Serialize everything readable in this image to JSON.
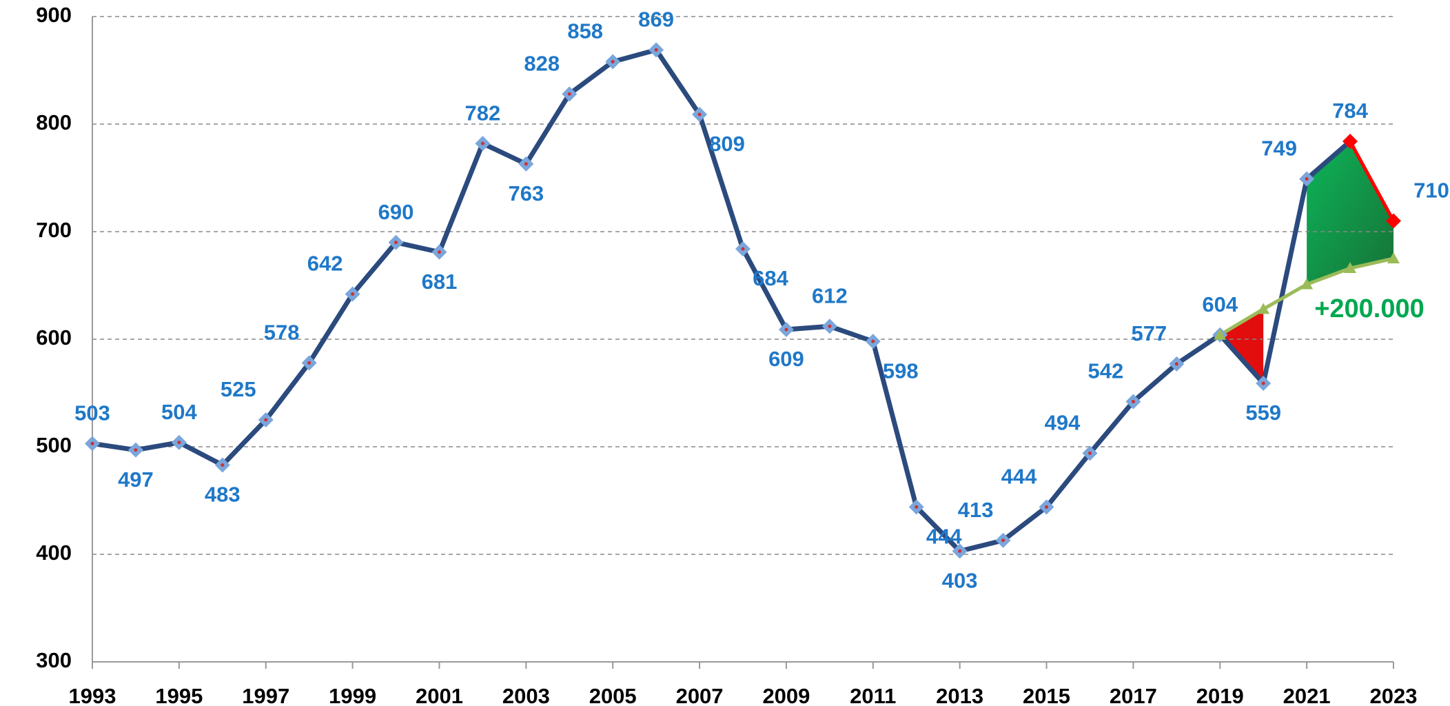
{
  "chart_data": {
    "type": "line",
    "x": [
      1993,
      1994,
      1995,
      1996,
      1997,
      1998,
      1999,
      2000,
      2001,
      2002,
      2003,
      2004,
      2005,
      2006,
      2007,
      2008,
      2009,
      2010,
      2011,
      2012,
      2013,
      2014,
      2015,
      2016,
      2017,
      2018,
      2019,
      2020,
      2021,
      2022,
      2023
    ],
    "series": [
      {
        "color": "#2b4a7e",
        "marker_color": "#7aa6dc",
        "values": [
          503,
          497,
          504,
          483,
          525,
          578,
          642,
          690,
          681,
          782,
          763,
          828,
          858,
          869,
          809,
          684,
          609,
          612,
          598,
          444,
          403,
          413,
          444,
          494,
          542,
          577,
          604,
          559,
          749,
          784,
          null
        ],
        "labeled": true
      },
      {
        "color": "#ff0000",
        "marker_color": "#ff0000",
        "values": [
          null,
          null,
          null,
          null,
          null,
          null,
          null,
          null,
          null,
          null,
          null,
          null,
          null,
          null,
          null,
          null,
          null,
          null,
          null,
          null,
          null,
          null,
          null,
          null,
          null,
          null,
          null,
          null,
          null,
          784,
          710
        ],
        "labeled": true
      },
      {
        "color": "#9bbb59",
        "marker_color": "#9bbb59",
        "values": [
          null,
          null,
          null,
          null,
          null,
          null,
          null,
          null,
          null,
          null,
          null,
          null,
          null,
          null,
          null,
          null,
          null,
          null,
          null,
          null,
          null,
          null,
          null,
          null,
          null,
          null,
          604,
          628,
          651,
          666,
          675
        ],
        "labeled": false
      }
    ],
    "annotation": "+200.000",
    "xlim": [
      1993,
      2023
    ],
    "xticks": [
      1993,
      1995,
      1997,
      1999,
      2001,
      2003,
      2005,
      2007,
      2009,
      2011,
      2013,
      2015,
      2017,
      2019,
      2021,
      2023
    ],
    "ylim": [
      300,
      900
    ],
    "yticks": [
      300,
      400,
      500,
      600,
      700,
      800,
      900
    ],
    "grid": true
  }
}
